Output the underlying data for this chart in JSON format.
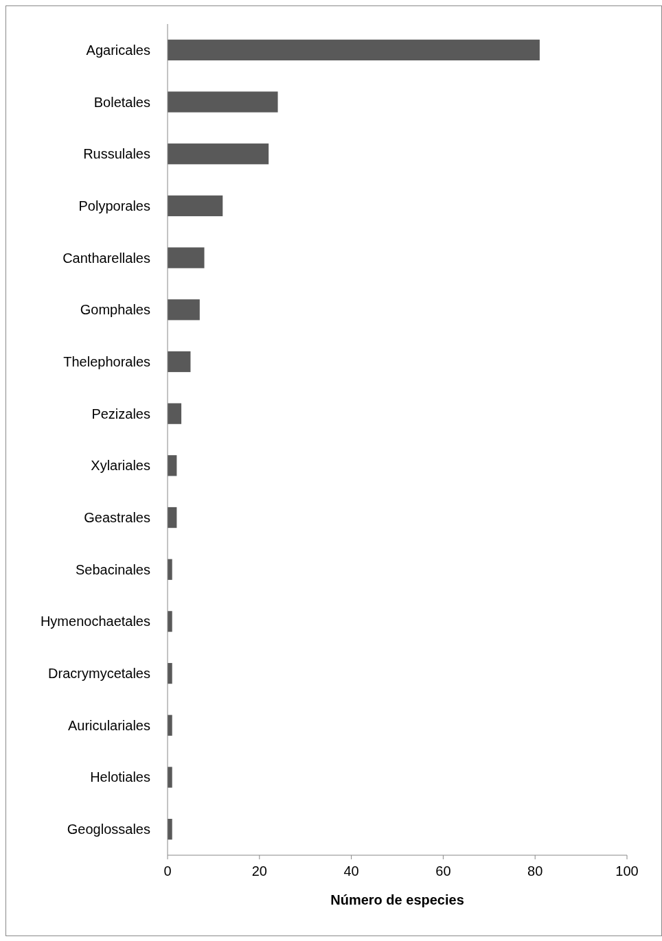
{
  "chart_data": {
    "type": "bar",
    "orientation": "horizontal",
    "xlabel": "Número de especies",
    "categories": [
      "Agaricales",
      "Boletales",
      "Russulales",
      "Polyporales",
      "Cantharellales",
      "Gomphales",
      "Thelephorales",
      "Pezizales",
      "Xylariales",
      "Geastrales",
      "Sebacinales",
      "Hymenochaetales",
      "Dracrymycetales",
      "Auriculariales",
      "Helotiales",
      "Geoglossales"
    ],
    "values": [
      81,
      24,
      22,
      12,
      8,
      7,
      5,
      3,
      2,
      2,
      1,
      1,
      1,
      1,
      1,
      1
    ],
    "color": "#595959",
    "xlim": [
      0,
      100
    ],
    "xticks": [
      0,
      20,
      40,
      60,
      80,
      100
    ],
    "grid": false
  }
}
